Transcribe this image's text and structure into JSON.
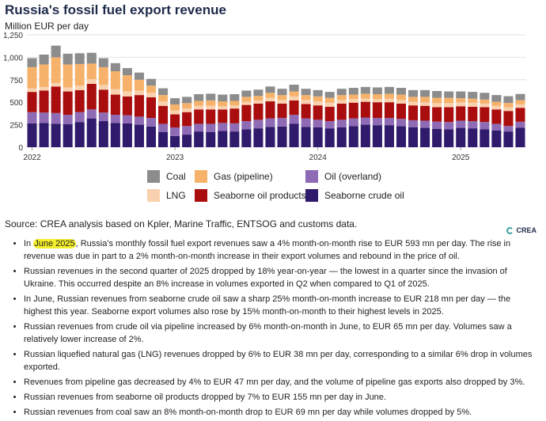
{
  "title": "Russia's fossil fuel export revenue",
  "subtitle": "Million EUR per day",
  "source": "Source: CREA analysis based on Kpler, Marine Traffic, ENTSOG and customs data.",
  "logo_text": "CREA",
  "colors": {
    "coal": "#8c8c8c",
    "gas_pipeline": "#f6b26b",
    "oil_overland": "#8e6bb4",
    "lng": "#fad1ae",
    "seaborne_oil_products": "#aa0d0d",
    "seaborne_crude": "#2f1a6b",
    "highlight": "#f3ee2a"
  },
  "legend": [
    {
      "label": "Coal",
      "key": "coal"
    },
    {
      "label": "Gas (pipeline)",
      "key": "gas_pipeline"
    },
    {
      "label": "Oil (overland)",
      "key": "oil_overland"
    },
    {
      "label": "LNG",
      "key": "lng"
    },
    {
      "label": "Seaborne oil products",
      "key": "seaborne_oil_products"
    },
    {
      "label": "Seaborne crude oil",
      "key": "seaborne_crude"
    }
  ],
  "chart_data": {
    "type": "bar",
    "stacked": true,
    "title": "Russia's fossil fuel export revenue",
    "ylabel": "Million EUR per day",
    "ylim": [
      0,
      1250
    ],
    "yticks": [
      0,
      250,
      500,
      750,
      1000,
      1250
    ],
    "xticks": [
      "2022",
      "2023",
      "2024",
      "2025"
    ],
    "categories": [
      "Jan-22",
      "Feb-22",
      "Mar-22",
      "Apr-22",
      "May-22",
      "Jun-22",
      "Jul-22",
      "Aug-22",
      "Sep-22",
      "Oct-22",
      "Nov-22",
      "Dec-22",
      "Jan-23",
      "Feb-23",
      "Mar-23",
      "Apr-23",
      "May-23",
      "Jun-23",
      "Jul-23",
      "Aug-23",
      "Sep-23",
      "Oct-23",
      "Nov-23",
      "Dec-23",
      "Jan-24",
      "Feb-24",
      "Mar-24",
      "Apr-24",
      "May-24",
      "Jun-24",
      "Jul-24",
      "Aug-24",
      "Sep-24",
      "Oct-24",
      "Nov-24",
      "Dec-24",
      "Jan-25",
      "Feb-25",
      "Mar-25",
      "Apr-25",
      "May-25",
      "Jun-25"
    ],
    "series": [
      {
        "name": "Seaborne crude oil",
        "key": "seaborne_crude",
        "values": [
          265,
          270,
          260,
          255,
          280,
          320,
          290,
          270,
          265,
          250,
          230,
          170,
          125,
          140,
          175,
          170,
          180,
          175,
          200,
          210,
          225,
          230,
          260,
          225,
          220,
          210,
          220,
          235,
          250,
          245,
          245,
          235,
          220,
          215,
          205,
          200,
          215,
          210,
          200,
          185,
          175,
          218
        ]
      },
      {
        "name": "Oil (overland)",
        "key": "oil_overland",
        "values": [
          125,
          115,
          120,
          105,
          110,
          100,
          95,
          90,
          90,
          90,
          95,
          90,
          95,
          95,
          85,
          90,
          90,
          90,
          90,
          95,
          95,
          95,
          100,
          95,
          85,
          80,
          85,
          85,
          80,
          80,
          80,
          80,
          80,
          80,
          80,
          80,
          80,
          80,
          80,
          75,
          61,
          65
        ]
      },
      {
        "name": "Seaborne oil products",
        "key": "seaborne_oil_products",
        "values": [
          225,
          245,
          295,
          260,
          245,
          285,
          255,
          225,
          210,
          240,
          230,
          200,
          145,
          155,
          160,
          160,
          150,
          165,
          180,
          180,
          190,
          160,
          160,
          160,
          160,
          160,
          180,
          175,
          175,
          175,
          175,
          170,
          165,
          165,
          160,
          165,
          160,
          160,
          165,
          160,
          167,
          155
        ]
      },
      {
        "name": "LNG",
        "key": "lng",
        "values": [
          40,
          40,
          40,
          45,
          50,
          50,
          55,
          60,
          55,
          50,
          50,
          50,
          45,
          40,
          40,
          40,
          35,
          35,
          35,
          35,
          40,
          40,
          45,
          45,
          45,
          45,
          40,
          40,
          35,
          35,
          40,
          40,
          40,
          40,
          45,
          45,
          45,
          45,
          40,
          40,
          40,
          38
        ]
      },
      {
        "name": "Gas (pipeline)",
        "key": "gas_pipeline",
        "values": [
          235,
          250,
          285,
          255,
          240,
          175,
          195,
          200,
          180,
          120,
          80,
          70,
          65,
          60,
          55,
          60,
          55,
          50,
          55,
          50,
          55,
          55,
          55,
          55,
          55,
          55,
          55,
          50,
          55,
          55,
          55,
          60,
          55,
          60,
          60,
          60,
          45,
          45,
          45,
          45,
          49,
          47
        ]
      },
      {
        "name": "Coal",
        "key": "coal",
        "values": [
          100,
          110,
          130,
          120,
          120,
          120,
          100,
          90,
          80,
          80,
          75,
          75,
          70,
          70,
          75,
          75,
          75,
          75,
          70,
          70,
          70,
          70,
          75,
          70,
          70,
          65,
          70,
          75,
          75,
          75,
          75,
          75,
          75,
          75,
          75,
          70,
          75,
          75,
          75,
          75,
          75,
          69
        ]
      }
    ]
  },
  "bullets": [
    {
      "pre": "In ",
      "highlight": "June 2025",
      "text": ", Russia's monthly fossil fuel export revenues saw a 4% month-on-month rise to EUR 593  mn per day. The rise in revenue was due in part to a 2% month-on-month increase in their export volumes and rebound in the price of oil."
    },
    {
      "pre": "",
      "highlight": "",
      "text": "Russian revenues in the second quarter of 2025 dropped by 18% year-on-year — the lowest in a quarter since the invasion of Ukraine. This occurred despite an 8% increase in volumes exported in Q2 when compared to Q1 of 2025."
    },
    {
      "pre": "",
      "highlight": "",
      "text": "In June, Russian revenues from seaborne crude oil saw a sharp 25% month-on-month increase to EUR 218 mn per day — the highest this year. Seaborne export volumes also rose by 15% month-on-month to their highest levels in 2025."
    },
    {
      "pre": "",
      "highlight": "",
      "text": "Russian revenues from crude oil via pipeline increased by 6% month-on-month in June, to EUR 65 mn per day. Volumes saw a relatively lower increase of 2%."
    },
    {
      "pre": "",
      "highlight": "",
      "text": "Russian liquefied natural gas (LNG) revenues dropped by 6% to EUR 38 mn per day, corresponding to a similar 6% drop in volumes exported."
    },
    {
      "pre": "",
      "highlight": "",
      "text": "Revenues from pipeline gas decreased by 4% to EUR 47 mn per day, and the volume of pipeline gas exports also dropped by 3%."
    },
    {
      "pre": "",
      "highlight": "",
      "text": "Russian revenues from seaborne oil products dropped by 7% to EUR 155 mn per day in June."
    },
    {
      "pre": "",
      "highlight": "",
      "text": "Russian revenues from coal saw an 8% month-on-month drop to EUR 69 mn per day while volumes dropped by 5%."
    }
  ]
}
